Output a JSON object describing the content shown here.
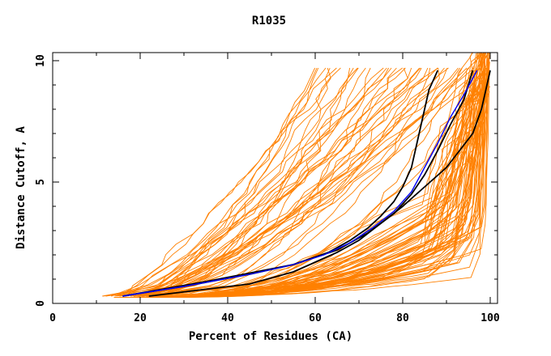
{
  "chart_data": {
    "type": "line",
    "title": "R1035",
    "xlabel": "Percent of Residues (CA)",
    "ylabel": "Distance Cutoff, A",
    "xlim": [
      0,
      100
    ],
    "ylim": [
      0,
      10
    ],
    "x_ticks": [
      "0",
      "20",
      "40",
      "60",
      "80",
      "100"
    ],
    "y_ticks": [
      "0",
      "5",
      "10"
    ],
    "grid": false,
    "legend": "none",
    "colors": {
      "background_models": "#ff8000",
      "highlight_black": "#000000",
      "highlight_blue": "#0000ff"
    },
    "highlight_series": [
      {
        "color": "#000000",
        "x": [
          22,
          45,
          55,
          60,
          65,
          70,
          75,
          80,
          85,
          90,
          93,
          96,
          98,
          100
        ],
        "y": [
          0.3,
          0.8,
          1.3,
          1.7,
          2.1,
          2.6,
          3.3,
          4.0,
          4.8,
          5.6,
          6.3,
          7.0,
          8.0,
          9.6
        ]
      },
      {
        "color": "#000000",
        "x": [
          16,
          30,
          45,
          55,
          63,
          68,
          72,
          75,
          78,
          80,
          82,
          83,
          84,
          85,
          86,
          88
        ],
        "y": [
          0.3,
          0.7,
          1.2,
          1.6,
          2.1,
          2.6,
          3.1,
          3.6,
          4.2,
          4.8,
          5.6,
          6.4,
          7.2,
          8.0,
          8.8,
          9.6
        ]
      },
      {
        "color": "#000000",
        "x": [
          16,
          35,
          55,
          65,
          72,
          78,
          82,
          85,
          88,
          91,
          94,
          96
        ],
        "y": [
          0.3,
          0.9,
          1.6,
          2.2,
          2.9,
          3.7,
          4.5,
          5.3,
          6.3,
          7.4,
          8.4,
          9.6
        ]
      },
      {
        "color": "#0000ff",
        "x": [
          16,
          30,
          45,
          55,
          62,
          68,
          73,
          78,
          82,
          85,
          88,
          91,
          94,
          97
        ],
        "y": [
          0.3,
          0.7,
          1.2,
          1.6,
          2.0,
          2.5,
          3.1,
          3.8,
          4.6,
          5.6,
          6.6,
          7.7,
          8.6,
          9.6
        ]
      }
    ]
  }
}
